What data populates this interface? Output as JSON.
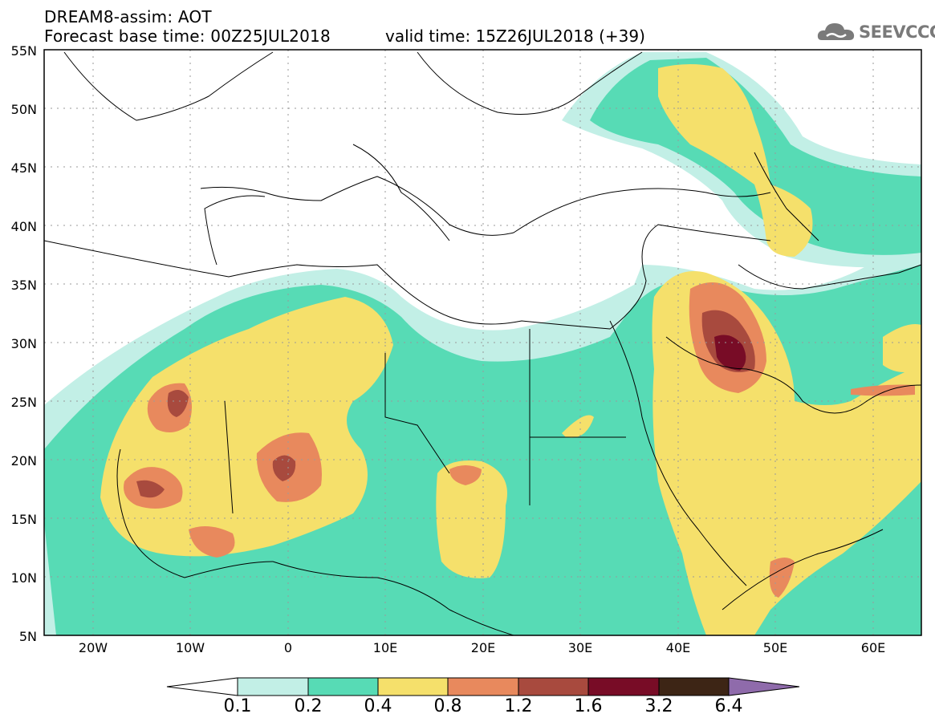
{
  "header": {
    "line1": "DREAM8-assim: AOT",
    "line2": "Forecast base time: 00Z25JUL2018",
    "valid": "valid time: 15Z26JUL2018 (+39)",
    "logo": "SEEVCCC"
  },
  "axes": {
    "lat_labels": [
      "55N",
      "50N",
      "45N",
      "40N",
      "35N",
      "30N",
      "25N",
      "20N",
      "15N",
      "10N",
      "5N"
    ],
    "lon_labels": [
      "20W",
      "10W",
      "0",
      "10E",
      "20E",
      "30E",
      "40E",
      "50E",
      "60E"
    ]
  },
  "colorbar": {
    "labels": [
      "0.1",
      "0.2",
      "0.4",
      "0.8",
      "1.2",
      "1.6",
      "3.2",
      "6.4"
    ],
    "colors": [
      "#ffffff",
      "#c2efe6",
      "#57dbb5",
      "#f5e06b",
      "#e8895d",
      "#a84a3e",
      "#780c26",
      "#3d2515",
      "#8f6bab"
    ]
  },
  "colors": {
    "c1": "#c2efe6",
    "c2": "#57dbb5",
    "c3": "#f5e06b",
    "c4": "#e8895d",
    "c5": "#a84a3e",
    "c6": "#780c26"
  }
}
